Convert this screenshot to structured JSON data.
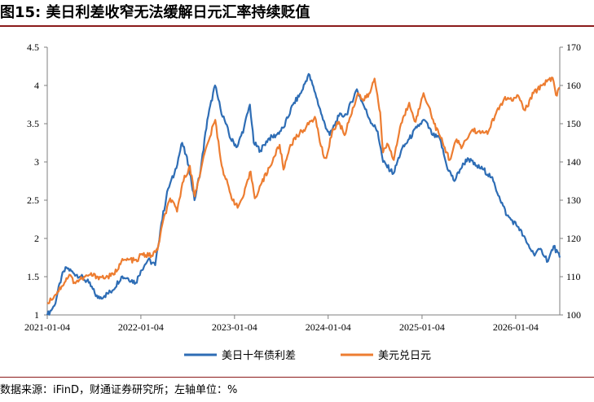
{
  "figure": {
    "title": "图15: 美日利差收窄无法缓解日元汇率持续贬值",
    "source": "数据来源：iFinD，财通证券研究所；左轴单位：%"
  },
  "chart_data": {
    "type": "line",
    "x_tick_labels": [
      "2021-01-04",
      "2022-01-04",
      "2023-01-04",
      "2024-01-04",
      "2025-01-04",
      "2026-01-04"
    ],
    "x_range": [
      "2021-01-04",
      "2026-06-25"
    ],
    "y_left": {
      "range": [
        1,
        4.5
      ],
      "tick_labels": [
        "1",
        "1.5",
        "2",
        "2.5",
        "3",
        "3.5",
        "4",
        "4.5"
      ]
    },
    "y_right": {
      "range": [
        100,
        170
      ],
      "tick_labels": [
        "100",
        "110",
        "120",
        "130",
        "140",
        "150",
        "160",
        "170"
      ]
    },
    "legend_position": "bottom-center",
    "grid": false,
    "series": [
      {
        "name": "美日十年债利差",
        "axis": "left",
        "color": "#2e6db5",
        "points": [
          [
            "2021-01-04",
            1.0
          ],
          [
            "2021-02-01",
            1.12
          ],
          [
            "2021-03-01",
            1.5
          ],
          [
            "2021-03-20",
            1.62
          ],
          [
            "2021-04-15",
            1.55
          ],
          [
            "2021-05-15",
            1.5
          ],
          [
            "2021-06-15",
            1.42
          ],
          [
            "2021-07-20",
            1.22
          ],
          [
            "2021-08-15",
            1.25
          ],
          [
            "2021-09-15",
            1.32
          ],
          [
            "2021-10-20",
            1.5
          ],
          [
            "2021-11-15",
            1.48
          ],
          [
            "2021-12-15",
            1.42
          ],
          [
            "2022-01-04",
            1.58
          ],
          [
            "2022-02-01",
            1.72
          ],
          [
            "2022-03-01",
            1.65
          ],
          [
            "2022-03-25",
            2.2
          ],
          [
            "2022-04-20",
            2.65
          ],
          [
            "2022-05-15",
            2.85
          ],
          [
            "2022-06-14",
            3.25
          ],
          [
            "2022-07-10",
            2.95
          ],
          [
            "2022-08-01",
            2.5
          ],
          [
            "2022-08-25",
            2.9
          ],
          [
            "2022-09-20",
            3.55
          ],
          [
            "2022-10-20",
            4.0
          ],
          [
            "2022-11-10",
            3.7
          ],
          [
            "2022-12-01",
            3.5
          ],
          [
            "2022-12-20",
            3.3
          ],
          [
            "2023-01-15",
            3.2
          ],
          [
            "2023-02-10",
            3.45
          ],
          [
            "2023-03-05",
            3.75
          ],
          [
            "2023-03-20",
            3.25
          ],
          [
            "2023-04-15",
            3.15
          ],
          [
            "2023-05-15",
            3.3
          ],
          [
            "2023-06-15",
            3.35
          ],
          [
            "2023-07-15",
            3.45
          ],
          [
            "2023-08-20",
            3.75
          ],
          [
            "2023-09-20",
            3.9
          ],
          [
            "2023-10-20",
            4.15
          ],
          [
            "2023-11-15",
            3.9
          ],
          [
            "2023-12-15",
            3.55
          ],
          [
            "2024-01-10",
            3.35
          ],
          [
            "2024-02-15",
            3.6
          ],
          [
            "2024-03-15",
            3.62
          ],
          [
            "2024-04-25",
            3.95
          ],
          [
            "2024-05-20",
            3.75
          ],
          [
            "2024-06-15",
            3.55
          ],
          [
            "2024-07-15",
            3.4
          ],
          [
            "2024-08-05",
            3.0
          ],
          [
            "2024-09-15",
            2.85
          ],
          [
            "2024-10-15",
            3.15
          ],
          [
            "2024-11-15",
            3.3
          ],
          [
            "2024-12-15",
            3.45
          ],
          [
            "2025-01-13",
            3.55
          ],
          [
            "2025-02-15",
            3.35
          ],
          [
            "2025-03-15",
            3.3
          ],
          [
            "2025-04-10",
            2.95
          ],
          [
            "2025-05-10",
            2.75
          ],
          [
            "2025-06-01",
            2.9
          ],
          [
            "2025-07-01",
            3.05
          ],
          [
            "2025-08-01",
            2.95
          ],
          [
            "2025-09-01",
            2.9
          ],
          [
            "2025-10-01",
            2.8
          ],
          [
            "2025-11-01",
            2.55
          ],
          [
            "2025-12-01",
            2.3
          ],
          [
            "2026-01-15",
            2.15
          ],
          [
            "2026-02-15",
            1.95
          ],
          [
            "2026-03-15",
            1.8
          ],
          [
            "2026-04-15",
            1.85
          ],
          [
            "2026-05-10",
            1.7
          ],
          [
            "2026-06-01",
            1.9
          ],
          [
            "2026-06-25",
            1.75
          ]
        ]
      },
      {
        "name": "美元兑日元",
        "axis": "right",
        "color": "#ed7d31",
        "points": [
          [
            "2021-01-04",
            103.2
          ],
          [
            "2021-02-01",
            105.0
          ],
          [
            "2021-03-01",
            107.5
          ],
          [
            "2021-03-31",
            110.5
          ],
          [
            "2021-04-20",
            108.5
          ],
          [
            "2021-05-20",
            109.5
          ],
          [
            "2021-06-20",
            110.5
          ],
          [
            "2021-07-20",
            110.0
          ],
          [
            "2021-08-20",
            109.8
          ],
          [
            "2021-09-20",
            110.5
          ],
          [
            "2021-10-20",
            114.0
          ],
          [
            "2021-11-20",
            114.5
          ],
          [
            "2021-12-20",
            114.0
          ],
          [
            "2022-01-04",
            115.8
          ],
          [
            "2022-02-15",
            115.5
          ],
          [
            "2022-03-10",
            117.0
          ],
          [
            "2022-03-28",
            123.5
          ],
          [
            "2022-04-28",
            130.5
          ],
          [
            "2022-05-25",
            127.0
          ],
          [
            "2022-06-15",
            134.5
          ],
          [
            "2022-07-14",
            139.0
          ],
          [
            "2022-08-02",
            131.0
          ],
          [
            "2022-09-01",
            140.0
          ],
          [
            "2022-09-22",
            145.0
          ],
          [
            "2022-10-21",
            151.0
          ],
          [
            "2022-11-15",
            139.0
          ],
          [
            "2022-12-20",
            131.5
          ],
          [
            "2023-01-16",
            128.0
          ],
          [
            "2023-02-10",
            131.5
          ],
          [
            "2023-03-08",
            137.5
          ],
          [
            "2023-03-24",
            130.5
          ],
          [
            "2023-04-20",
            134.5
          ],
          [
            "2023-05-20",
            138.5
          ],
          [
            "2023-06-29",
            144.5
          ],
          [
            "2023-07-14",
            138.0
          ],
          [
            "2023-08-10",
            144.5
          ],
          [
            "2023-09-15",
            147.5
          ],
          [
            "2023-10-20",
            149.8
          ],
          [
            "2023-11-13",
            151.8
          ],
          [
            "2023-12-15",
            142.0
          ],
          [
            "2023-12-28",
            141.0
          ],
          [
            "2024-01-20",
            148.0
          ],
          [
            "2024-02-15",
            150.5
          ],
          [
            "2024-03-08",
            147.0
          ],
          [
            "2024-03-28",
            151.5
          ],
          [
            "2024-04-29",
            158.0
          ],
          [
            "2024-05-20",
            156.0
          ],
          [
            "2024-06-15",
            158.0
          ],
          [
            "2024-07-03",
            161.8
          ],
          [
            "2024-07-25",
            153.0
          ],
          [
            "2024-08-05",
            142.5
          ],
          [
            "2024-08-25",
            144.5
          ],
          [
            "2024-09-16",
            140.5
          ],
          [
            "2024-10-10",
            149.0
          ],
          [
            "2024-11-15",
            155.5
          ],
          [
            "2024-12-10",
            150.5
          ],
          [
            "2025-01-10",
            158.0
          ],
          [
            "2025-01-31",
            154.5
          ],
          [
            "2025-02-20",
            150.0
          ],
          [
            "2025-03-10",
            147.5
          ],
          [
            "2025-04-22",
            140.5
          ],
          [
            "2025-05-15",
            145.5
          ],
          [
            "2025-06-10",
            144.0
          ],
          [
            "2025-07-20",
            148.5
          ],
          [
            "2025-08-20",
            147.5
          ],
          [
            "2025-09-20",
            148.0
          ],
          [
            "2025-10-15",
            152.0
          ],
          [
            "2025-11-20",
            156.5
          ],
          [
            "2025-12-20",
            156.0
          ],
          [
            "2026-01-10",
            157.5
          ],
          [
            "2026-02-10",
            153.5
          ],
          [
            "2026-03-15",
            158.0
          ],
          [
            "2026-04-15",
            160.0
          ],
          [
            "2026-05-10",
            161.5
          ],
          [
            "2026-05-28",
            162.0
          ],
          [
            "2026-06-10",
            157.5
          ],
          [
            "2026-06-25",
            159.5
          ]
        ]
      }
    ]
  }
}
